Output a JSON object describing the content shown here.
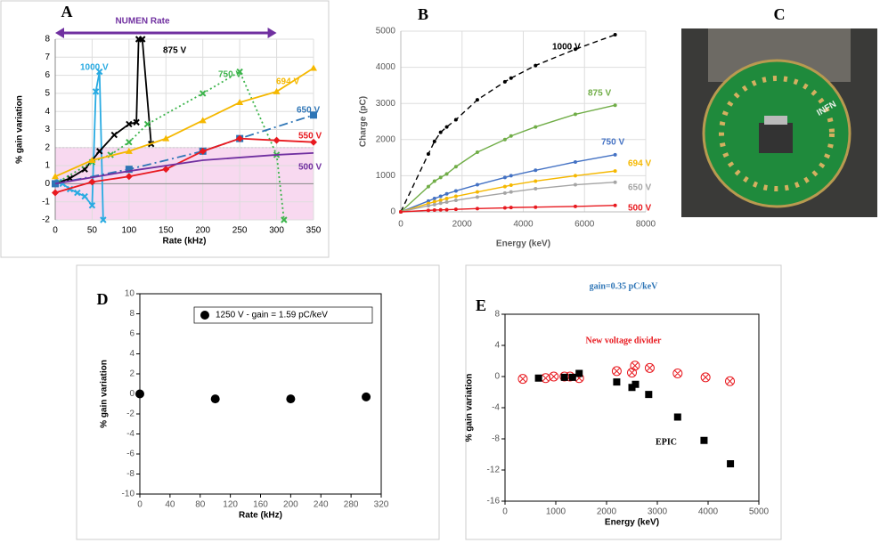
{
  "chart_data": [
    {
      "type": "line",
      "label": "A",
      "title": "NUMEN Rate",
      "xlabel": "Rate (kHz)",
      "ylabel": "% gain variation",
      "xlim": [
        0,
        350
      ],
      "xticks": [
        0,
        50,
        100,
        150,
        200,
        250,
        300,
        350
      ],
      "ylim": [
        -2,
        8
      ],
      "yticks": [
        -2,
        -1,
        0,
        1,
        2,
        3,
        4,
        5,
        6,
        7,
        8
      ],
      "grid": true,
      "band": [
        -2,
        2
      ],
      "series": [
        {
          "name": "1000 V",
          "color": "#29abe2",
          "line_style": "solid",
          "marker": "x",
          "x": [
            5,
            10,
            20,
            30,
            40,
            50,
            55,
            60,
            65
          ],
          "values": [
            0.1,
            0,
            -0.3,
            -0.5,
            -0.7,
            -1.2,
            5.1,
            6.2,
            -2
          ]
        },
        {
          "name": "875 V",
          "color": "#000000",
          "line_style": "solid",
          "marker": "x",
          "x": [
            0,
            20,
            40,
            60,
            80,
            100,
            110,
            113,
            118,
            130
          ],
          "values": [
            0,
            0.3,
            0.8,
            1.8,
            2.7,
            3.3,
            3.4,
            8,
            8,
            2.2
          ]
        },
        {
          "name": "750 V",
          "color": "#3cb44b",
          "line_style": "dotted",
          "marker": "x",
          "x": [
            0,
            50,
            75,
            100,
            125,
            200,
            250,
            300,
            310
          ],
          "values": [
            0,
            1.2,
            1.6,
            2.3,
            3.3,
            5,
            6.2,
            1.6,
            -2
          ]
        },
        {
          "name": "694 V",
          "color": "#f5b800",
          "line_style": "solid",
          "marker": "triangle",
          "x": [
            0,
            50,
            100,
            150,
            200,
            250,
            300,
            350
          ],
          "values": [
            0.4,
            1.3,
            1.8,
            2.5,
            3.5,
            4.5,
            5.1,
            6.4
          ]
        },
        {
          "name": "650 V",
          "color": "#2e75b6",
          "line_style": "dash-dot",
          "marker": "square",
          "x": [
            0,
            100,
            200,
            250,
            350
          ],
          "values": [
            0,
            0.8,
            1.8,
            2.5,
            3.8
          ]
        },
        {
          "name": "550 V",
          "color": "#e8191f",
          "line_style": "solid",
          "marker": "diamond",
          "x": [
            0,
            50,
            100,
            150,
            200,
            250,
            300,
            350
          ],
          "values": [
            -0.5,
            0.1,
            0.4,
            0.8,
            1.8,
            2.5,
            2.4,
            2.3
          ]
        },
        {
          "name": "500 V",
          "color": "#7030a0",
          "line_style": "solid",
          "marker": "none",
          "x": [
            0,
            100,
            200,
            300,
            350
          ],
          "values": [
            0,
            0.7,
            1.3,
            1.6,
            1.7
          ]
        }
      ]
    },
    {
      "type": "line",
      "label": "B",
      "xlabel": "Energy (keV)",
      "ylabel": "Charge (pC)",
      "xlim": [
        0,
        8000
      ],
      "xticks": [
        0,
        2000,
        4000,
        6000,
        8000
      ],
      "ylim": [
        0,
        5000
      ],
      "yticks": [
        0,
        1000,
        2000,
        3000,
        4000,
        5000
      ],
      "grid": true,
      "x": [
        0,
        900,
        1100,
        1300,
        1500,
        1800,
        2500,
        3400,
        3600,
        4400,
        5700,
        7000
      ],
      "series": [
        {
          "name": "1000 V",
          "color": "#000000",
          "line_style": "dashed",
          "marker": "dot",
          "values": [
            0,
            1600,
            1950,
            2200,
            2350,
            2550,
            3100,
            3600,
            3700,
            4050,
            4500,
            4900
          ]
        },
        {
          "name": "875 V",
          "color": "#70ad47",
          "line_style": "solid",
          "marker": "dot",
          "values": [
            0,
            700,
            850,
            950,
            1050,
            1250,
            1650,
            2000,
            2100,
            2350,
            2700,
            2950
          ]
        },
        {
          "name": "750 V",
          "color": "#4472c4",
          "line_style": "solid",
          "marker": "dot",
          "values": [
            0,
            300,
            370,
            430,
            500,
            580,
            750,
            950,
            1000,
            1150,
            1380,
            1580
          ]
        },
        {
          "name": "694 V",
          "color": "#f5b800",
          "line_style": "solid",
          "marker": "dot",
          "values": [
            0,
            230,
            280,
            320,
            370,
            430,
            550,
            700,
            740,
            850,
            1000,
            1130
          ]
        },
        {
          "name": "650 V",
          "color": "#a5a5a5",
          "line_style": "solid",
          "marker": "dot",
          "values": [
            0,
            170,
            200,
            240,
            270,
            320,
            410,
            520,
            550,
            640,
            750,
            820
          ]
        },
        {
          "name": "500 V",
          "color": "#e8191f",
          "line_style": "solid",
          "marker": "dot",
          "values": [
            0,
            40,
            50,
            55,
            60,
            70,
            90,
            110,
            120,
            130,
            150,
            180
          ]
        }
      ]
    },
    {
      "type": "scatter",
      "label": "D",
      "xlabel": "Rate (kHz)",
      "ylabel": "% gain variation",
      "xlim": [
        0,
        320
      ],
      "xticks": [
        0,
        40,
        80,
        120,
        160,
        200,
        240,
        280,
        320
      ],
      "ylim": [
        -10,
        10
      ],
      "yticks": [
        -10,
        -8,
        -6,
        -4,
        -2,
        0,
        2,
        4,
        6,
        8,
        10
      ],
      "grid": false,
      "legend": "upper right",
      "series": [
        {
          "name": "1250 V - gain = 1.59 pC/keV",
          "color": "#000000",
          "marker": "circle",
          "x": [
            0,
            100,
            200,
            300
          ],
          "values": [
            0,
            -0.5,
            -0.5,
            -0.3
          ]
        }
      ]
    },
    {
      "type": "scatter",
      "label": "E",
      "title": "gain=0.35 pC/keV",
      "xlabel": "Energy (keV)",
      "ylabel": "% gain variation",
      "xlim": [
        0,
        5000
      ],
      "xticks": [
        0,
        1000,
        2000,
        3000,
        4000,
        5000
      ],
      "ylim": [
        -16,
        8
      ],
      "yticks": [
        -16,
        -12,
        -8,
        -4,
        0,
        4,
        8
      ],
      "grid": false,
      "series": [
        {
          "name": "New voltage divider",
          "color": "#e8191f",
          "marker": "circle-x",
          "x": [
            350,
            800,
            960,
            1170,
            1280,
            1460,
            2200,
            2500,
            2560,
            2850,
            3400,
            3950,
            4430
          ],
          "values": [
            -0.3,
            -0.2,
            0,
            0,
            0,
            -0.2,
            0.7,
            0.5,
            1.4,
            1.1,
            0.4,
            -0.1,
            -0.6
          ]
        },
        {
          "name": "EPIC",
          "color": "#000000",
          "marker": "square",
          "x": [
            660,
            1170,
            1330,
            1460,
            2200,
            2500,
            2570,
            2830,
            3400,
            3920,
            4440
          ],
          "values": [
            -0.2,
            -0.1,
            -0.1,
            0.4,
            -0.7,
            -1.4,
            -1,
            -2.3,
            -5.2,
            -8.2,
            -11.2
          ]
        }
      ]
    }
  ],
  "photo": {
    "label": "C",
    "board_text": "INFN"
  }
}
